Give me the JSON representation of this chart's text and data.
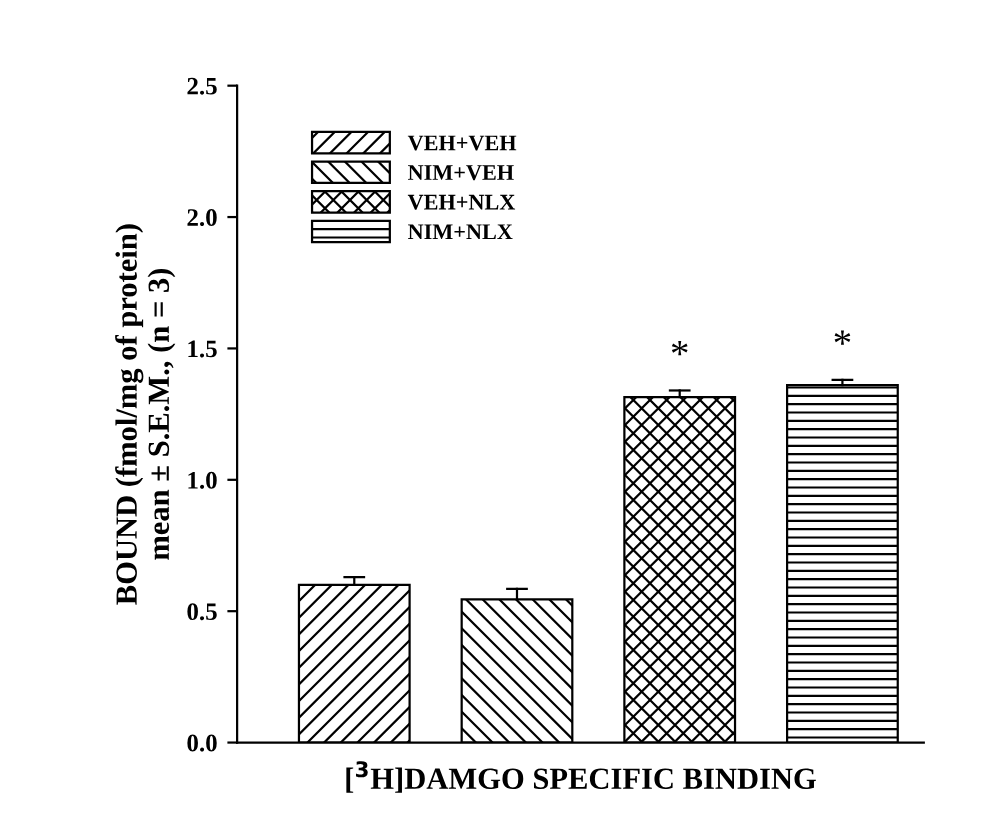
{
  "chart_data": {
    "type": "bar",
    "xlabel": "[$^{3}$H]DAMGO SPECIFIC BINDING",
    "ylabel": "BOUND (fmol/mg of protein)\nmean ± S.E.M., (n = 3)",
    "categories": [
      null,
      null,
      null,
      null
    ],
    "series": [
      {
        "name": "VEH+VEH",
        "color": "#000000",
        "values": [
          0.6,
          null,
          null,
          null
        ],
        "errors": [
          [
            0.6,
            0.63
          ],
          null,
          null,
          null
        ]
      },
      {
        "name": "NIM+VEH",
        "color": "#000000",
        "values": [
          null,
          0.545,
          null,
          null
        ],
        "errors": [
          null,
          [
            0.545,
            0.585
          ],
          null,
          null
        ]
      },
      {
        "name": "VEH+NLX",
        "color": "#000000",
        "values": [
          null,
          null,
          1.315,
          null
        ],
        "errors": [
          null,
          null,
          [
            1.315,
            1.34
          ],
          null
        ],
        "value_labels": [
          null,
          null,
          "*",
          null
        ]
      },
      {
        "name": "NIM+NLX",
        "color": "#000000",
        "values": [
          null,
          null,
          null,
          1.36
        ],
        "errors": [
          null,
          null,
          null,
          [
            1.36,
            1.38
          ]
        ],
        "value_labels": [
          null,
          null,
          null,
          "*"
        ]
      }
    ],
    "ylim": [
      0,
      2.5
    ],
    "yticks": [
      {
        "value": 0,
        "label": "0.0"
      },
      {
        "value": 0.5,
        "label": "0.5"
      },
      {
        "value": 1.0,
        "label": "1.0"
      },
      {
        "value": 1.5,
        "label": "1.5"
      },
      {
        "value": 2.0,
        "label": "2.0"
      },
      {
        "value": 2.5,
        "label": "2.5"
      }
    ],
    "legend": "top left"
  }
}
